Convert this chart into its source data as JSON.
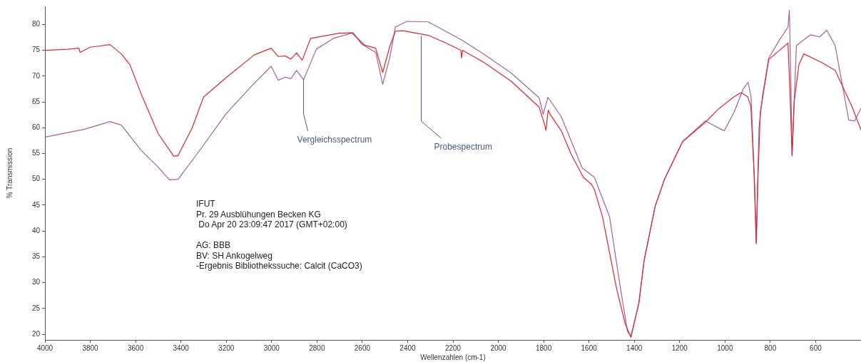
{
  "chart_data": {
    "type": "line",
    "xlabel": "Wellenzahlen (cm-1)",
    "ylabel": "% Transmission",
    "xlim": [
      4000,
      400
    ],
    "xticks": [
      4000,
      3800,
      3600,
      3400,
      3200,
      3000,
      2800,
      2600,
      2400,
      2200,
      2000,
      1800,
      1600,
      1400,
      1200,
      1000,
      800,
      600
    ],
    "ylim": [
      18.9,
      83.5
    ],
    "yticks": [
      20,
      25,
      30,
      35,
      40,
      45,
      50,
      55,
      60,
      65,
      70,
      75,
      80
    ],
    "grid": false,
    "legend": false,
    "marker": "none",
    "line_style": "solid",
    "series": [
      {
        "color": "#e0262e",
        "x": [
          4000,
          3900,
          3850,
          3845,
          3800,
          3713,
          3663,
          3625,
          3575,
          3501,
          3432,
          3413,
          3350,
          3301,
          3201,
          3077,
          3002,
          2971,
          2940,
          2915,
          2890,
          2865,
          2828,
          2702,
          2646,
          2590,
          2541,
          2510,
          2479,
          2454,
          2420,
          2309,
          2230,
          2165,
          2162,
          2158,
          2065,
          1943,
          1820,
          1795,
          1790,
          1780,
          1770,
          1722,
          1680,
          1625,
          1588,
          1576,
          1540,
          1478,
          1440,
          1415,
          1380,
          1357,
          1308,
          1266,
          1187,
          1088,
          1027,
          960,
          929,
          900,
          886,
          870,
          862,
          855,
          844,
          807,
          760,
          722,
          712,
          704,
          695,
          674,
          652,
          576,
          514,
          441,
          400
        ],
        "values": [
          75,
          75.2,
          75.4,
          74.6,
          75.6,
          76.1,
          74.3,
          72.2,
          66.5,
          58.9,
          54.5,
          54.6,
          60,
          65.9,
          69.7,
          74.1,
          75.4,
          73.8,
          73.9,
          73.3,
          74.5,
          73.1,
          77.3,
          78.3,
          78.4,
          76,
          75.4,
          70.7,
          75.7,
          78.7,
          78.8,
          77.9,
          76.4,
          75,
          73.5,
          75,
          72.7,
          69,
          64,
          60.5,
          59.5,
          63.4,
          62.5,
          59.4,
          55,
          50.4,
          49,
          48,
          42.7,
          28.8,
          22,
          19.4,
          26,
          34.2,
          44.8,
          50.1,
          57.3,
          61,
          63.7,
          66,
          66.8,
          66,
          64.2,
          50,
          37.6,
          50,
          63.1,
          73.2,
          75,
          76.4,
          65,
          54.6,
          65,
          72.2,
          74.3,
          72.7,
          71.1,
          64.2,
          59.6
        ]
      },
      {
        "color": "#a4609e",
        "x": [
          4000,
          3825,
          3713,
          3663,
          3575,
          3501,
          3451,
          3413,
          3326,
          3201,
          3077,
          3002,
          2971,
          2940,
          2915,
          2890,
          2859,
          2803,
          2728,
          2640,
          2603,
          2541,
          2510,
          2479,
          2454,
          2404,
          2309,
          2162,
          2065,
          1943,
          1820,
          1802,
          1781,
          1722,
          1630,
          1576,
          1509,
          1465,
          1430,
          1415,
          1380,
          1357,
          1308,
          1266,
          1187,
          1088,
          1003,
          960,
          920,
          898,
          885,
          875,
          862,
          850,
          835,
          807,
          760,
          722,
          716,
          710,
          704,
          685,
          623,
          582,
          551,
          514,
          454,
          428,
          400
        ],
        "values": [
          58.2,
          59.7,
          61.2,
          60.5,
          55.6,
          52.4,
          49.9,
          50,
          55.1,
          62.7,
          68.6,
          71.9,
          69.2,
          69.8,
          69.5,
          71.1,
          69.3,
          75.2,
          77.3,
          78.4,
          76.2,
          74.6,
          68.4,
          73.5,
          79.5,
          80.6,
          80.5,
          77,
          74.3,
          70.6,
          65.8,
          62.6,
          65.9,
          62.1,
          52.2,
          50.4,
          42.7,
          30,
          20.5,
          19.6,
          26,
          34.2,
          44.8,
          50.1,
          57.3,
          61.3,
          59.4,
          63,
          67.5,
          68.8,
          66,
          55,
          37.6,
          60,
          66,
          73.5,
          77,
          79.5,
          82.8,
          70,
          54.6,
          75.9,
          78,
          77.6,
          78.9,
          75.9,
          61.5,
          61.3,
          63.8
        ]
      }
    ],
    "annotations": [
      {
        "text": "Vergleichsspectrum",
        "x": 2859,
        "y": 69.3
      },
      {
        "text": "Probespectrum",
        "x": 2340,
        "y": 77.8
      },
      "IFUT",
      "Pr. 29 Ausblühungen Becken KG",
      " Do Apr 20 23:09:47 2017 (GMT+02:00)",
      "AG: BBB",
      "BV: SH Ankogelweg",
      "-Ergebnis Bibliothekssuche: Calcit (CaCO3)"
    ]
  }
}
